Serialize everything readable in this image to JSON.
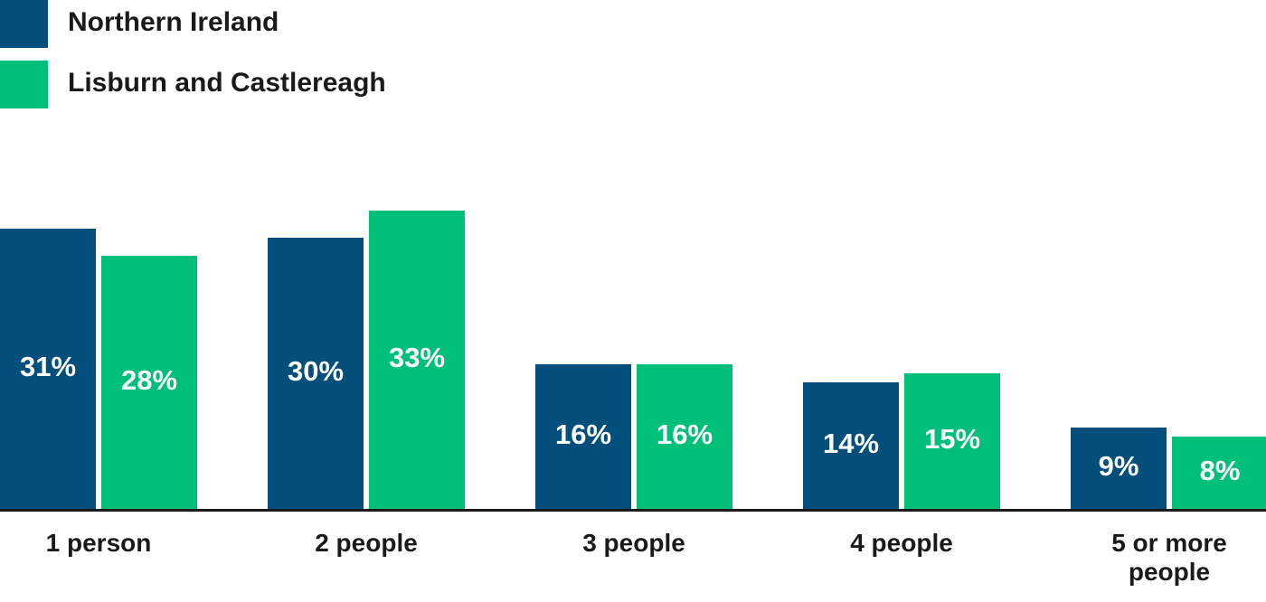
{
  "chart_data": {
    "type": "bar",
    "categories": [
      "1 person",
      "2 people",
      "3 people",
      "4 people",
      "5 or more people"
    ],
    "series": [
      {
        "name": "Northern Ireland",
        "color": "#034e7b",
        "values": [
          31,
          30,
          16,
          14,
          9
        ],
        "value_labels": [
          "31%",
          "30%",
          "16%",
          "14%",
          "9%"
        ]
      },
      {
        "name": "Lisburn and Castlereagh",
        "color": "#00bf78",
        "values": [
          28,
          33,
          16,
          15,
          8
        ],
        "value_labels": [
          "28%",
          "33%",
          "16%",
          "15%",
          "8%"
        ]
      }
    ],
    "ylim": [
      0,
      50
    ]
  }
}
